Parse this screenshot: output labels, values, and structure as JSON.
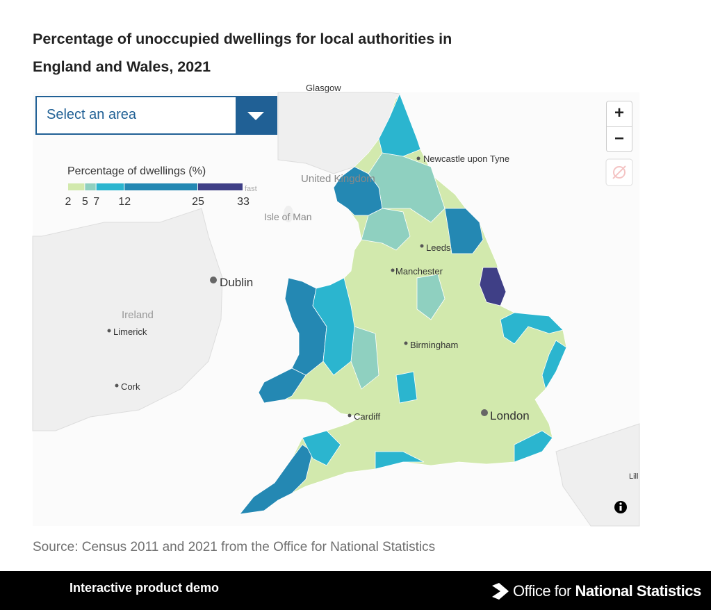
{
  "header": {
    "title_line1": "Percentage of unoccupied dwellings for local authorities in",
    "title_line2": "England and Wales, 2021"
  },
  "dropdown": {
    "placeholder": "Select an area"
  },
  "legend": {
    "title": "Percentage of dwellings (%)",
    "breaks": [
      2,
      5,
      7,
      12,
      25,
      33
    ],
    "colors": [
      "#d2e9ad",
      "#8fd0c0",
      "#2bb5cf",
      "#2488b3",
      "#3f3f86"
    ]
  },
  "map": {
    "places": [
      "Glasgow",
      "United Kingdom",
      "fast",
      "Newcastle upon Tyne",
      "Isle of Man",
      "Leeds",
      "Manchester",
      "Dublin",
      "Ireland",
      "Limerick",
      "Birmingham",
      "Cork",
      "Cardiff",
      "London",
      "Lill"
    ]
  },
  "zoom": {
    "in": "+",
    "out": "−"
  },
  "source": "Source: Census 2011 and 2021 from the Office for National Statistics",
  "footer": {
    "label": "Interactive product demo",
    "logo_prefix": "Office for",
    "logo_name": "National Statistics"
  }
}
